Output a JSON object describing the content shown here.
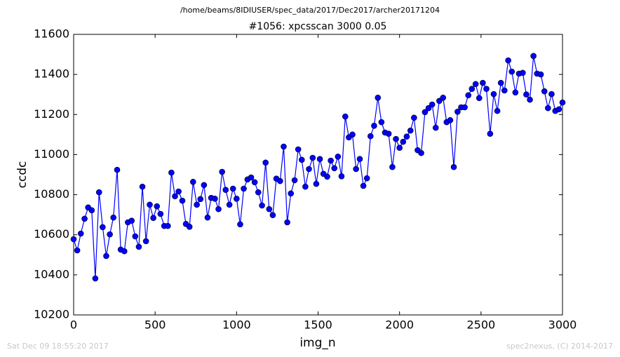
{
  "chart_data": {
    "type": "line",
    "suptitle": "/home/beams/8IDIUSER/spec_data/2017/Dec2017/archer20171204",
    "title": "#1056: xpcsscan 3000 0.05",
    "xlabel": "img_n",
    "ylabel": "ccdc",
    "footer_left": "Sat Dec 09 18:55:20 2017",
    "footer_right": "spec2nexus, (C) 2014-2017",
    "color": "#0000ff",
    "xlim": [
      0,
      3000
    ],
    "xticks": [
      0,
      500,
      1000,
      1500,
      2000,
      2500,
      3000
    ],
    "ylim": [
      10200,
      11600
    ],
    "yticks": [
      10200,
      10400,
      10600,
      10800,
      11000,
      11200,
      11400,
      11600
    ],
    "x": [
      0,
      22,
      44,
      67,
      89,
      111,
      133,
      156,
      178,
      200,
      222,
      244,
      267,
      289,
      311,
      333,
      356,
      378,
      400,
      422,
      444,
      467,
      489,
      511,
      533,
      556,
      578,
      600,
      622,
      644,
      667,
      689,
      711,
      733,
      756,
      778,
      800,
      822,
      844,
      867,
      889,
      911,
      933,
      956,
      978,
      1000,
      1022,
      1044,
      1067,
      1089,
      1111,
      1133,
      1156,
      1178,
      1200,
      1222,
      1244,
      1267,
      1289,
      1311,
      1333,
      1356,
      1378,
      1400,
      1422,
      1444,
      1467,
      1489,
      1511,
      1533,
      1556,
      1578,
      1600,
      1622,
      1644,
      1667,
      1689,
      1711,
      1733,
      1756,
      1778,
      1800,
      1822,
      1844,
      1867,
      1889,
      1911,
      1933,
      1956,
      1978,
      2000,
      2022,
      2044,
      2067,
      2089,
      2111,
      2133,
      2156,
      2178,
      2200,
      2222,
      2244,
      2267,
      2289,
      2311,
      2333,
      2356,
      2378,
      2400,
      2422,
      2444,
      2467,
      2489,
      2511,
      2533,
      2556,
      2578,
      2600,
      2622,
      2644,
      2667,
      2689,
      2711,
      2733,
      2756,
      2778,
      2800,
      2822,
      2844,
      2867,
      2889,
      2911,
      2933,
      2956,
      2978,
      3000
    ],
    "values": [
      10578,
      10522,
      10606,
      10680,
      10736,
      10722,
      10382,
      10812,
      10638,
      10494,
      10602,
      10686,
      10924,
      10526,
      10518,
      10662,
      10670,
      10592,
      10540,
      10840,
      10568,
      10750,
      10684,
      10742,
      10704,
      10644,
      10644,
      10910,
      10792,
      10816,
      10770,
      10654,
      10640,
      10864,
      10750,
      10778,
      10848,
      10686,
      10784,
      10780,
      10728,
      10914,
      10824,
      10750,
      10830,
      10780,
      10652,
      10830,
      10876,
      10886,
      10862,
      10812,
      10746,
      10960,
      10728,
      10698,
      10880,
      10868,
      11040,
      10662,
      10806,
      10872,
      11026,
      10974,
      10840,
      10928,
      10984,
      10854,
      10978,
      10904,
      10890,
      10970,
      10932,
      10990,
      10892,
      11190,
      11086,
      11100,
      10928,
      10978,
      10844,
      10882,
      11092,
      11144,
      11284,
      11162,
      11110,
      11104,
      10938,
      11078,
      11034,
      11064,
      11090,
      11120,
      11184,
      11022,
      11008,
      11212,
      11232,
      11250,
      11134,
      11268,
      11284,
      11162,
      11172,
      10938,
      11214,
      11236,
      11236,
      11296,
      11328,
      11352,
      11282,
      11358,
      11328,
      11104,
      11302,
      11218,
      11358,
      11320,
      11470,
      11414,
      11310,
      11404,
      11408,
      11300,
      11274,
      11492,
      11404,
      11400,
      11316,
      11232,
      11302,
      11218,
      11226,
      11260
    ]
  }
}
